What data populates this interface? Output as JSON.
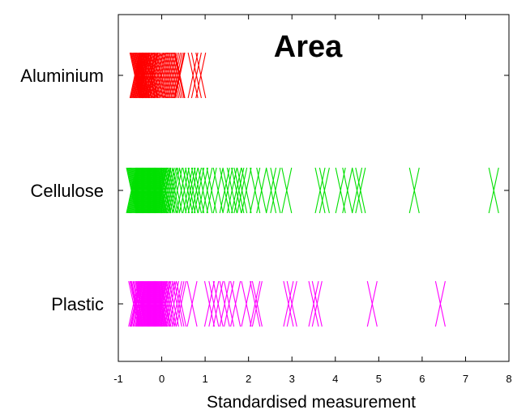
{
  "chart_data": {
    "type": "scatter",
    "title": "Area",
    "xlabel": "Standardised measurement",
    "ylabel": "",
    "xlim": [
      -1,
      8
    ],
    "x_ticks": [
      "-1",
      "0",
      "1",
      "2",
      "3",
      "4",
      "5",
      "6",
      "7",
      "8"
    ],
    "categories": [
      "Aluminium",
      "Cellulose",
      "Plastic"
    ],
    "grid": false,
    "marker": "bowtie",
    "series": [
      {
        "name": "Aluminium",
        "color": "#ff0000",
        "x": [
          -0.62,
          -0.6,
          -0.58,
          -0.56,
          -0.55,
          -0.53,
          -0.52,
          -0.5,
          -0.49,
          -0.47,
          -0.46,
          -0.44,
          -0.42,
          -0.4,
          -0.38,
          -0.35,
          -0.33,
          -0.3,
          -0.27,
          -0.25,
          -0.22,
          -0.2,
          -0.17,
          -0.14,
          -0.1,
          -0.07,
          -0.03,
          0.0,
          0.04,
          0.08,
          0.12,
          0.16,
          0.2,
          0.24,
          0.28,
          0.32,
          0.36,
          0.4,
          0.42,
          0.72,
          0.8,
          0.9
        ]
      },
      {
        "name": "Cellulose",
        "color": "#00e000",
        "x": [
          -0.7,
          -0.68,
          -0.66,
          -0.64,
          -0.62,
          -0.6,
          -0.58,
          -0.56,
          -0.54,
          -0.52,
          -0.5,
          -0.48,
          -0.46,
          -0.44,
          -0.42,
          -0.4,
          -0.38,
          -0.36,
          -0.34,
          -0.32,
          -0.3,
          -0.28,
          -0.26,
          -0.24,
          -0.22,
          -0.2,
          -0.18,
          -0.16,
          -0.14,
          -0.12,
          -0.1,
          -0.08,
          -0.06,
          -0.04,
          -0.02,
          0.0,
          0.02,
          0.05,
          0.08,
          0.1,
          0.14,
          0.18,
          0.22,
          0.26,
          0.3,
          0.36,
          0.45,
          0.52,
          0.6,
          0.66,
          0.72,
          0.8,
          0.86,
          0.95,
          1.05,
          1.15,
          1.3,
          1.45,
          1.52,
          1.62,
          1.72,
          1.78,
          1.85,
          1.95,
          2.15,
          2.3,
          2.52,
          2.62,
          2.88,
          3.65,
          3.75,
          4.12,
          4.28,
          4.5,
          4.58,
          5.82,
          7.65
        ]
      },
      {
        "name": "Plastic",
        "color": "#ff00ff",
        "x": [
          -0.65,
          -0.62,
          -0.6,
          -0.58,
          -0.55,
          -0.53,
          -0.5,
          -0.48,
          -0.46,
          -0.44,
          -0.42,
          -0.4,
          -0.38,
          -0.36,
          -0.34,
          -0.32,
          -0.3,
          -0.28,
          -0.26,
          -0.24,
          -0.22,
          -0.2,
          -0.18,
          -0.16,
          -0.14,
          -0.12,
          -0.1,
          -0.08,
          -0.06,
          -0.04,
          -0.02,
          0.0,
          0.02,
          0.05,
          0.08,
          0.1,
          0.14,
          0.18,
          0.22,
          0.28,
          0.35,
          0.4,
          0.45,
          0.7,
          1.1,
          1.2,
          1.3,
          1.45,
          1.55,
          1.7,
          1.95,
          2.15,
          2.2,
          2.92,
          3.0,
          3.5,
          3.58,
          4.85,
          6.42
        ]
      }
    ]
  }
}
